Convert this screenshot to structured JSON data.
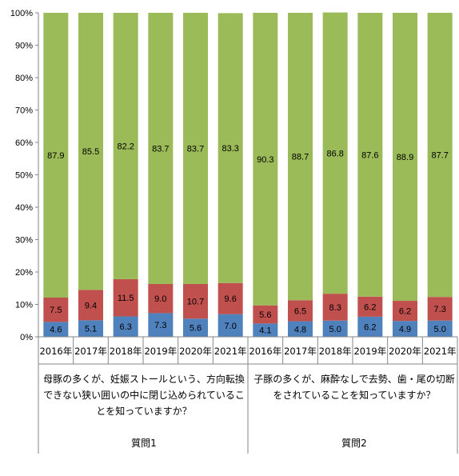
{
  "chart_data": {
    "type": "bar",
    "stacked": true,
    "ylim": [
      0,
      100
    ],
    "yticks": [
      "0%",
      "10%",
      "20%",
      "30%",
      "40%",
      "50%",
      "60%",
      "70%",
      "80%",
      "90%",
      "100%"
    ],
    "grid": false,
    "legend": "none",
    "categories": [
      "2016年",
      "2017年",
      "2018年",
      "2019年",
      "2020年",
      "2021年",
      "2016年",
      "2017年",
      "2018年",
      "2019年",
      "2020年",
      "2021年"
    ],
    "groups": [
      {
        "label": "質問1",
        "question": "母豚の多くが、妊娠ストールという、方向転換できない狭い囲いの中に閉じ込められていることを知っていますか？",
        "lines": [
          "母豚の多くが、妊娠ストールという、方向転換",
          "できない狭い囲いの中に閉じ込められているこ",
          "とを知っていますか？"
        ]
      },
      {
        "label": "質問2",
        "question": "子豚の多くが、麻酔なしで去勢、歯・尾の切断をされていることを知っていますか？",
        "lines": [
          "子豚の多くが、麻酔なしで去勢、歯・尾の切断",
          "をされていることを知っていますか？"
        ]
      }
    ],
    "series": [
      {
        "color": "#4f81bd",
        "values": [
          4.6,
          5.1,
          6.3,
          7.3,
          5.6,
          7.0,
          4.1,
          4.8,
          5.0,
          6.2,
          4.9,
          5.0
        ]
      },
      {
        "color": "#c0504d",
        "values": [
          7.5,
          9.4,
          11.5,
          9.0,
          10.7,
          9.6,
          5.6,
          6.5,
          8.3,
          6.2,
          6.2,
          7.3
        ]
      },
      {
        "color": "#9bbb59",
        "values": [
          87.9,
          85.5,
          82.2,
          83.7,
          83.7,
          83.3,
          90.3,
          88.7,
          86.8,
          87.6,
          88.9,
          87.7
        ]
      }
    ]
  }
}
